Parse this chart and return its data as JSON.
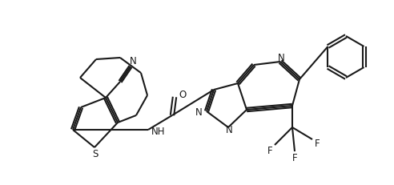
{
  "bg_color": "#ffffff",
  "line_color": "#1a1a1a",
  "line_width": 1.5,
  "figsize": [
    4.92,
    2.32
  ],
  "dpi": 100,
  "atoms": {
    "S": "S",
    "N": "N",
    "NH": "NH",
    "O": "O",
    "F": "F"
  }
}
